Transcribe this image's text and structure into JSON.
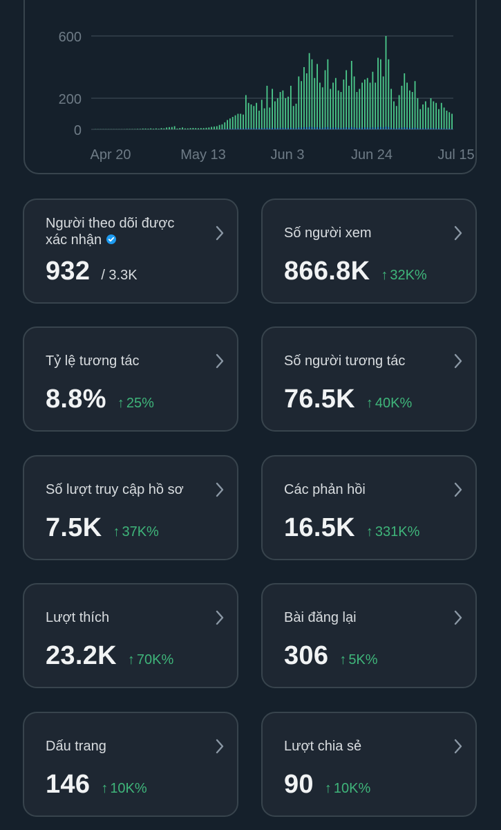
{
  "chart_data": {
    "type": "bar",
    "x_tick_labels": [
      "Apr 20",
      "May 13",
      "Jun 3",
      "Jun 24",
      "Jul 15"
    ],
    "y_tick_labels": [
      "600",
      "200",
      "0"
    ],
    "ylim": [
      0,
      600
    ],
    "grid": true,
    "colors": {
      "primary": "#4ccb8c",
      "secondary": "#2b8fd1"
    },
    "series": [
      {
        "values": [
          1,
          1,
          1,
          1,
          1,
          1,
          1,
          1,
          1,
          1,
          1,
          1,
          2,
          2,
          2,
          2,
          3,
          3,
          5,
          5,
          4,
          6,
          4,
          6,
          4,
          8,
          6,
          12,
          14,
          15,
          20,
          5,
          8,
          12,
          6,
          6,
          8,
          9,
          8,
          7,
          8,
          8,
          10,
          12,
          16,
          18,
          20,
          28,
          32,
          45,
          60,
          70,
          80,
          90,
          100,
          100,
          95,
          220,
          170,
          160,
          150,
          170,
          120,
          190,
          135,
          280,
          140,
          260,
          180,
          200,
          240,
          250,
          200,
          210,
          280,
          150,
          165,
          340,
          310,
          400,
          360,
          490,
          450,
          330,
          420,
          300,
          270,
          380,
          450,
          260,
          300,
          330,
          250,
          240,
          320,
          380,
          280,
          440,
          340,
          240,
          260,
          300,
          320,
          330,
          300,
          370,
          300,
          460,
          450,
          340,
          600,
          450,
          260,
          180,
          150,
          220,
          280,
          360,
          300,
          250,
          240,
          310,
          200,
          130,
          160,
          180,
          140,
          200,
          180,
          170,
          130,
          170,
          140,
          120,
          110,
          100
        ]
      },
      {
        "values": [
          0,
          0,
          0,
          0,
          0,
          0,
          0,
          0,
          0,
          0,
          0,
          0,
          0,
          0,
          0,
          0,
          0,
          0,
          0,
          0,
          0,
          0,
          0,
          0,
          0,
          0,
          0,
          0,
          0,
          0,
          0,
          0,
          0,
          0,
          0,
          0,
          0,
          0,
          0,
          0,
          0,
          0,
          0,
          0,
          0,
          0,
          0,
          0,
          2,
          3,
          4,
          4,
          5,
          5,
          6,
          6,
          5,
          8,
          7,
          7,
          7,
          8,
          6,
          8,
          7,
          10,
          7,
          10,
          8,
          9,
          10,
          10,
          9,
          9,
          11,
          8,
          8,
          12,
          11,
          14,
          13,
          16,
          15,
          12,
          14,
          11,
          10,
          13,
          15,
          10,
          11,
          12,
          10,
          9,
          11,
          13,
          10,
          15,
          12,
          9,
          10,
          11,
          12,
          12,
          11,
          13,
          11,
          15,
          15,
          12,
          18,
          15,
          10,
          8,
          7,
          9,
          11,
          13,
          11,
          10,
          9,
          11,
          8,
          6,
          7,
          8,
          6,
          8,
          8,
          7,
          6,
          7,
          6,
          5,
          5,
          4
        ]
      }
    ]
  },
  "stats": [
    {
      "label": "Người theo dõi được xác nhận",
      "value": "932",
      "sub": "/ 3.3K"
    },
    {
      "label": "Số người xem",
      "value": "866.8K",
      "delta": "32K%"
    },
    {
      "label": "Tỷ lệ tương tác",
      "value": "8.8%",
      "delta": "25%"
    },
    {
      "label": "Số người tương tác",
      "value": "76.5K",
      "delta": "40K%"
    },
    {
      "label": "Số lượt truy cập hồ sơ",
      "value": "7.5K",
      "delta": "37K%"
    },
    {
      "label": "Các phản hồi",
      "value": "16.5K",
      "delta": "331K%"
    },
    {
      "label": "Lượt thích",
      "value": "23.2K",
      "delta": "70K%"
    },
    {
      "label": "Bài đăng lại",
      "value": "306",
      "delta": "5K%"
    },
    {
      "label": "Dấu trang",
      "value": "146",
      "delta": "10K%"
    },
    {
      "label": "Lượt chia sẻ",
      "value": "90",
      "delta": "10K%"
    }
  ],
  "colors": {
    "background": "#15202b",
    "card": "#1e2732",
    "border": "#38444d",
    "positive": "#3fb57a",
    "verified": "#1d9bf0"
  }
}
